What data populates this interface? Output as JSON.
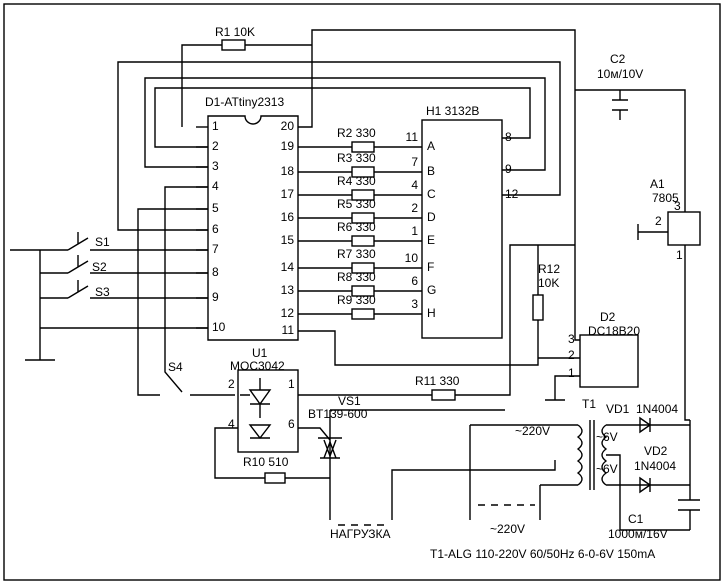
{
  "mcu": {
    "name": "D1-ATtiny2313",
    "left_pins": [
      "1",
      "2",
      "3",
      "4",
      "5",
      "6",
      "7",
      "8",
      "9",
      "10"
    ],
    "right_pins": [
      "20",
      "19",
      "18",
      "17",
      "16",
      "15",
      "14",
      "13",
      "12",
      "11"
    ]
  },
  "display": {
    "name": "H1 3132B",
    "pins": [
      "11",
      "7",
      "4",
      "2",
      "1",
      "10",
      "6",
      "3"
    ],
    "segments": [
      "A",
      "B",
      "C",
      "D",
      "E",
      "F",
      "G",
      "H"
    ],
    "common_pins": [
      "8",
      "9",
      "12"
    ]
  },
  "resistors": [
    "R1 10K",
    "R2 330",
    "R3 330",
    "R4 330",
    "R5 330",
    "R6 330",
    "R7 330",
    "R8 330",
    "R9 330",
    "R10 510",
    "R11 330"
  ],
  "r12": {
    "name": "R12",
    "value": "10K"
  },
  "switches": [
    "S1",
    "S2",
    "S3",
    "S4"
  ],
  "optocoupler": {
    "name": "U1",
    "model": "MOC3042",
    "pins": [
      "2",
      "1",
      "4",
      "6"
    ]
  },
  "triac": {
    "name": "VS1",
    "model": "BT139-600"
  },
  "load": "НАГРУЗКА",
  "mains": [
    "~220V",
    "~220V"
  ],
  "transformer": {
    "name": "T1",
    "secondary": [
      "~6V",
      "~6V"
    ],
    "note": "T1-ALG 110-220V 60/50Hz 6-0-6V 150mA"
  },
  "sensor": {
    "name": "D2",
    "model": "DC18B20",
    "pins": [
      "3",
      "2",
      "1"
    ]
  },
  "regulator": {
    "name": "A1",
    "model": "7805",
    "pins": [
      "3",
      "2",
      "1"
    ]
  },
  "capacitors": [
    {
      "name": "C2",
      "value": "10м/10V"
    },
    {
      "name": "C1",
      "value": "1000м/16V"
    }
  ],
  "diodes": [
    {
      "name": "VD1",
      "model": "1N4004"
    },
    {
      "name": "VD2",
      "model": "1N4004"
    }
  ]
}
